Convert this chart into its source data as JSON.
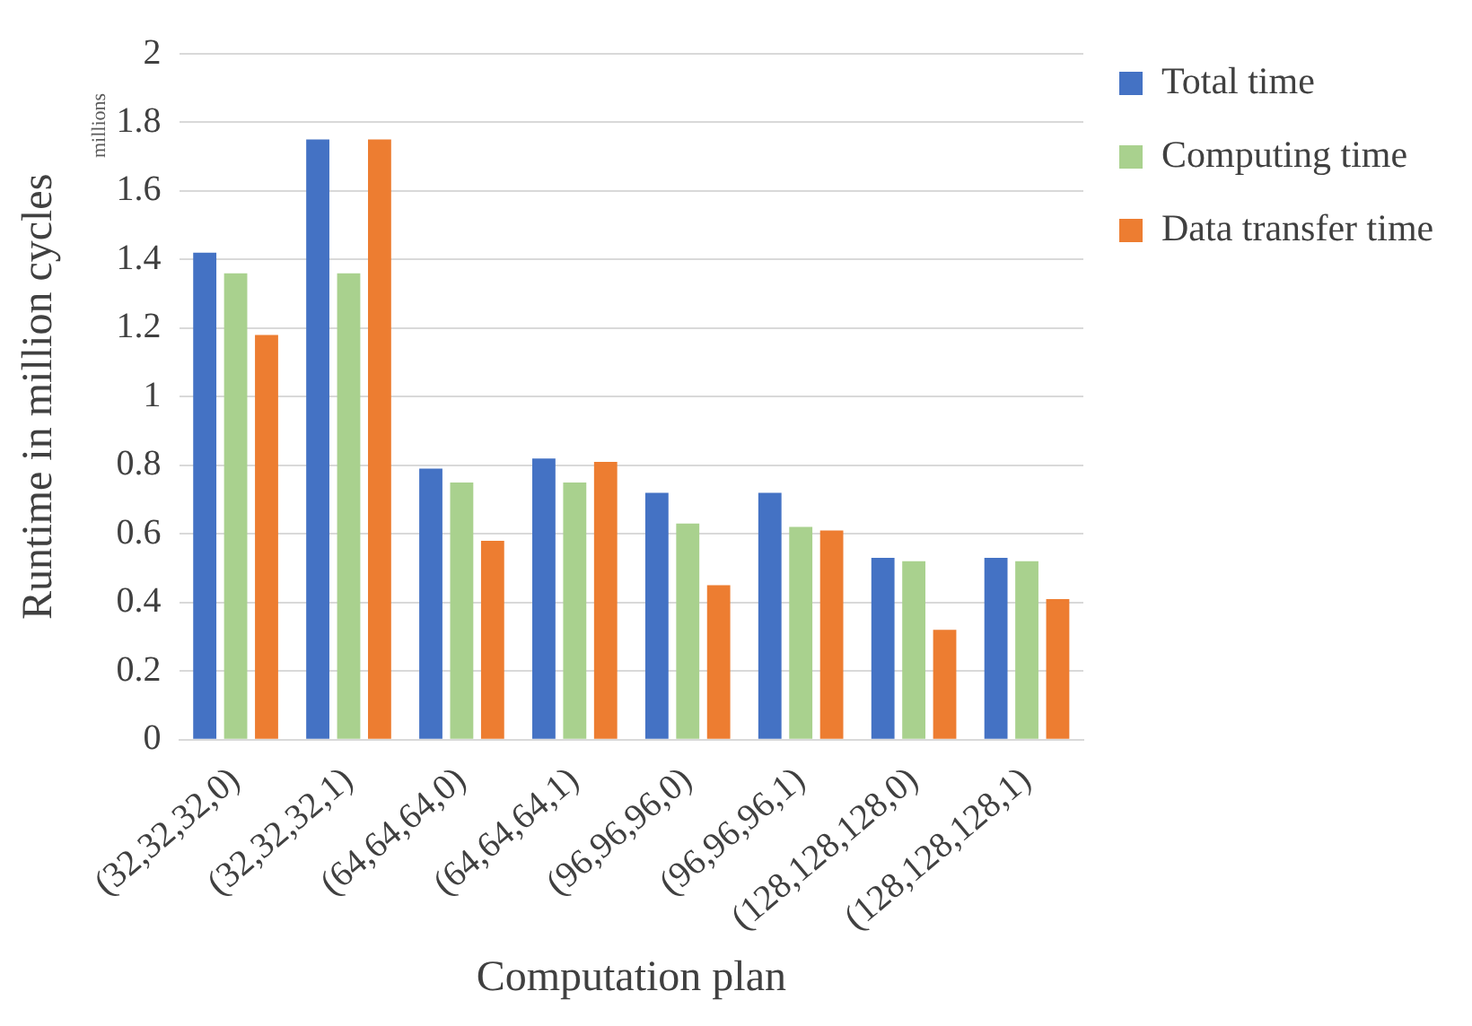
{
  "chart_data": {
    "type": "bar",
    "ylabel": "Runtime in million cycles",
    "xlabel": "Computation plan",
    "annotations": [
      "millions"
    ],
    "categories": [
      "(32,32,32,0)",
      "(32,32,32,1)",
      "(64,64,64,0)",
      "(64,64,64,1)",
      "(96,96,96,0)",
      "(96,96,96,1)",
      "(128,128,128,0)",
      "(128,128,128,1)"
    ],
    "series": [
      {
        "name": "Total time",
        "color": "#4472c4",
        "values": [
          1.42,
          1.75,
          0.79,
          0.82,
          0.72,
          0.72,
          0.53,
          0.53
        ]
      },
      {
        "name": "Computing time",
        "color": "#a9d18e",
        "values": [
          1.36,
          1.36,
          0.75,
          0.75,
          0.63,
          0.62,
          0.52,
          0.52
        ]
      },
      {
        "name": "Data transfer time",
        "color": "#ed7d31",
        "values": [
          1.18,
          1.75,
          0.58,
          0.81,
          0.45,
          0.61,
          0.32,
          0.41
        ]
      }
    ],
    "ylim": [
      0,
      2
    ],
    "yticks": [
      0,
      0.2,
      0.4,
      0.6,
      0.8,
      1,
      1.2,
      1.4,
      1.6,
      1.8,
      2
    ],
    "grid": "y",
    "legend": "top right"
  }
}
